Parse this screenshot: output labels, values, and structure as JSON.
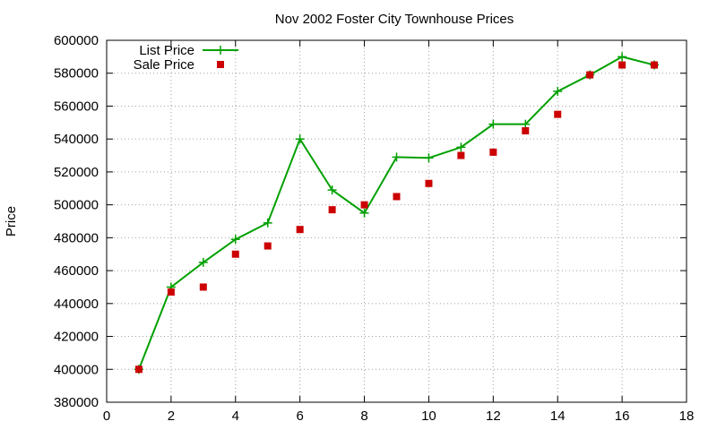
{
  "chart_data": {
    "type": "line",
    "title": "Nov 2002 Foster City Townhouse Prices",
    "xlabel": "",
    "ylabel": "Price",
    "xlim": [
      0,
      18
    ],
    "ylim": [
      380000,
      600000
    ],
    "x_ticks": [
      0,
      2,
      4,
      6,
      8,
      10,
      12,
      14,
      16,
      18
    ],
    "y_ticks": [
      380000,
      400000,
      420000,
      440000,
      460000,
      480000,
      500000,
      520000,
      540000,
      560000,
      580000,
      600000
    ],
    "grid": true,
    "legend_position": "top-left",
    "series": [
      {
        "name": "List Price",
        "style": "line+plus-markers",
        "color": "#00a000",
        "points": [
          [
            1,
            400000
          ],
          [
            2,
            450000
          ],
          [
            3,
            465000
          ],
          [
            4,
            479000
          ],
          [
            5,
            489000
          ],
          [
            6,
            540000
          ],
          [
            7,
            509000
          ],
          [
            8,
            495000
          ],
          [
            9,
            529000
          ],
          [
            10,
            528500
          ],
          [
            11,
            535000
          ],
          [
            12,
            549000
          ],
          [
            13,
            549000
          ],
          [
            14,
            569000
          ],
          [
            15,
            579000
          ],
          [
            16,
            590000
          ],
          [
            17,
            585000
          ]
        ]
      },
      {
        "name": "Sale Price",
        "style": "square-markers",
        "color": "#cc0000",
        "points": [
          [
            1,
            400000
          ],
          [
            2,
            447000
          ],
          [
            3,
            450000
          ],
          [
            4,
            470000
          ],
          [
            5,
            475000
          ],
          [
            6,
            485000
          ],
          [
            7,
            497000
          ],
          [
            8,
            500000
          ],
          [
            9,
            505000
          ],
          [
            10,
            513000
          ],
          [
            11,
            530000
          ],
          [
            12,
            532000
          ],
          [
            13,
            545000
          ],
          [
            14,
            555000
          ],
          [
            15,
            579000
          ],
          [
            16,
            585000
          ],
          [
            17,
            585000
          ]
        ]
      }
    ]
  }
}
